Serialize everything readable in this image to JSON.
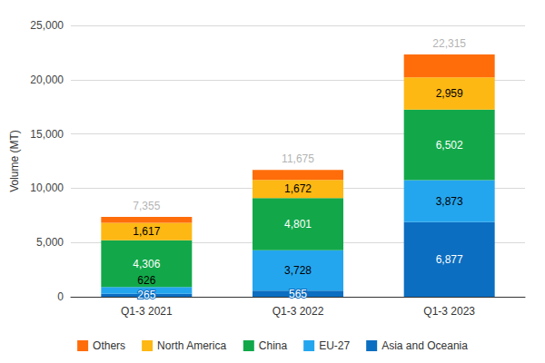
{
  "chart_data": {
    "type": "bar",
    "stacked": true,
    "data_labels": true,
    "grid": true,
    "legend": "bottom",
    "y_label": "Volume (MT)",
    "categories": [
      "Q1-3 2021",
      "Q1-3 2022",
      "Q1-3 2023"
    ],
    "series": [
      {
        "name": "Asia and Oceania",
        "color": "#0b6ec1",
        "values": [
          265,
          565,
          6877
        ],
        "value_labels": [
          "265",
          "565",
          "6,877"
        ]
      },
      {
        "name": "EU-27",
        "color": "#24a6ee",
        "values": [
          626,
          3728,
          3873
        ],
        "value_labels": [
          "626",
          "3,728",
          "3,873"
        ]
      },
      {
        "name": "China",
        "color": "#12a84a",
        "values": [
          4306,
          4801,
          6502
        ],
        "value_labels": [
          "4,306",
          "4,801",
          "6,502"
        ]
      },
      {
        "name": "North America",
        "color": "#fdb813",
        "values": [
          1617,
          1672,
          2959
        ],
        "value_labels": [
          "1,617",
          "1,672",
          "2,959"
        ]
      },
      {
        "name": "Others",
        "color": "#ff6d0a",
        "values": [
          541,
          909,
          2104
        ],
        "data_labels": false
      }
    ],
    "totals": [
      7355,
      11675,
      22315
    ],
    "total_labels": [
      "7,355",
      "11,675",
      "22,315"
    ],
    "ylim": [
      0,
      25000
    ],
    "yticks": [
      0,
      {
        "value": 5000,
        "label": "5,000"
      },
      {
        "value": 10000,
        "label": "10,000"
      },
      {
        "value": 15000,
        "label": "15,000"
      },
      {
        "value": 20000,
        "label": "20,000"
      },
      {
        "value": 25000,
        "label": "25,000"
      }
    ]
  }
}
